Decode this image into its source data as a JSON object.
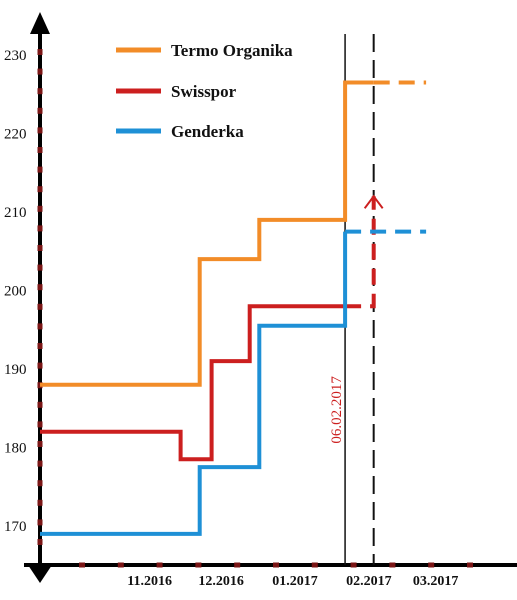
{
  "chart_data": {
    "type": "line",
    "step": true,
    "title": "",
    "xlabel": "",
    "ylabel": "",
    "ylim": [
      165,
      235
    ],
    "yticks": [
      170,
      180,
      190,
      200,
      210,
      220,
      230
    ],
    "x_tick_labels": [
      "11.2016",
      "12.2016",
      "01.2017",
      "02.2017",
      "03.2017"
    ],
    "x_domain": [
      "2016-10-01",
      "2017-04-12"
    ],
    "month_starts": [
      "2016-11-01",
      "2016-12-01",
      "2017-01-01",
      "2017-02-01",
      "2017-03-01"
    ],
    "grid": false,
    "legend_position": "top-center",
    "series": [
      {
        "name": "Termo Organika",
        "color": "#f28c28",
        "points": [
          [
            "2016-10-01",
            188
          ],
          [
            "2016-12-07",
            188
          ],
          [
            "2016-12-07",
            204
          ],
          [
            "2017-01-01",
            204
          ],
          [
            "2017-01-01",
            209
          ],
          [
            "2017-02-06",
            209
          ],
          [
            "2017-02-06",
            226.5
          ],
          [
            "2017-02-18",
            226.5
          ]
        ],
        "forecast": [
          [
            "2017-02-18",
            226.5
          ],
          [
            "2017-03-12",
            226.5
          ]
        ]
      },
      {
        "name": "Swisspor",
        "color": "#cc1f1f",
        "points": [
          [
            "2016-10-01",
            182
          ],
          [
            "2016-11-29",
            182
          ],
          [
            "2016-11-29",
            178.5
          ],
          [
            "2016-12-12",
            178.5
          ],
          [
            "2016-12-12",
            191
          ],
          [
            "2016-12-28",
            191
          ],
          [
            "2016-12-28",
            198
          ],
          [
            "2017-02-06",
            198
          ]
        ],
        "forecast": [
          [
            "2017-02-06",
            198
          ],
          [
            "2017-02-18",
            198
          ],
          [
            "2017-02-18",
            212
          ]
        ]
      },
      {
        "name": "Genderka",
        "color": "#1e90d6",
        "points": [
          [
            "2016-10-01",
            169
          ],
          [
            "2016-12-07",
            169
          ],
          [
            "2016-12-07",
            177.5
          ],
          [
            "2017-01-01",
            177.5
          ],
          [
            "2017-01-01",
            195.5
          ],
          [
            "2017-02-06",
            195.5
          ],
          [
            "2017-02-06",
            207.5
          ]
        ],
        "forecast": [
          [
            "2017-02-06",
            207.5
          ],
          [
            "2017-03-12",
            207.5
          ]
        ]
      }
    ],
    "markers": [
      {
        "label": "06.02.2017",
        "date": "2017-02-06",
        "style": "solid",
        "label_color": "#cc1f1f"
      },
      {
        "date": "2017-02-18",
        "style": "dashed"
      }
    ],
    "axis_dot_color": "#7a1515"
  }
}
